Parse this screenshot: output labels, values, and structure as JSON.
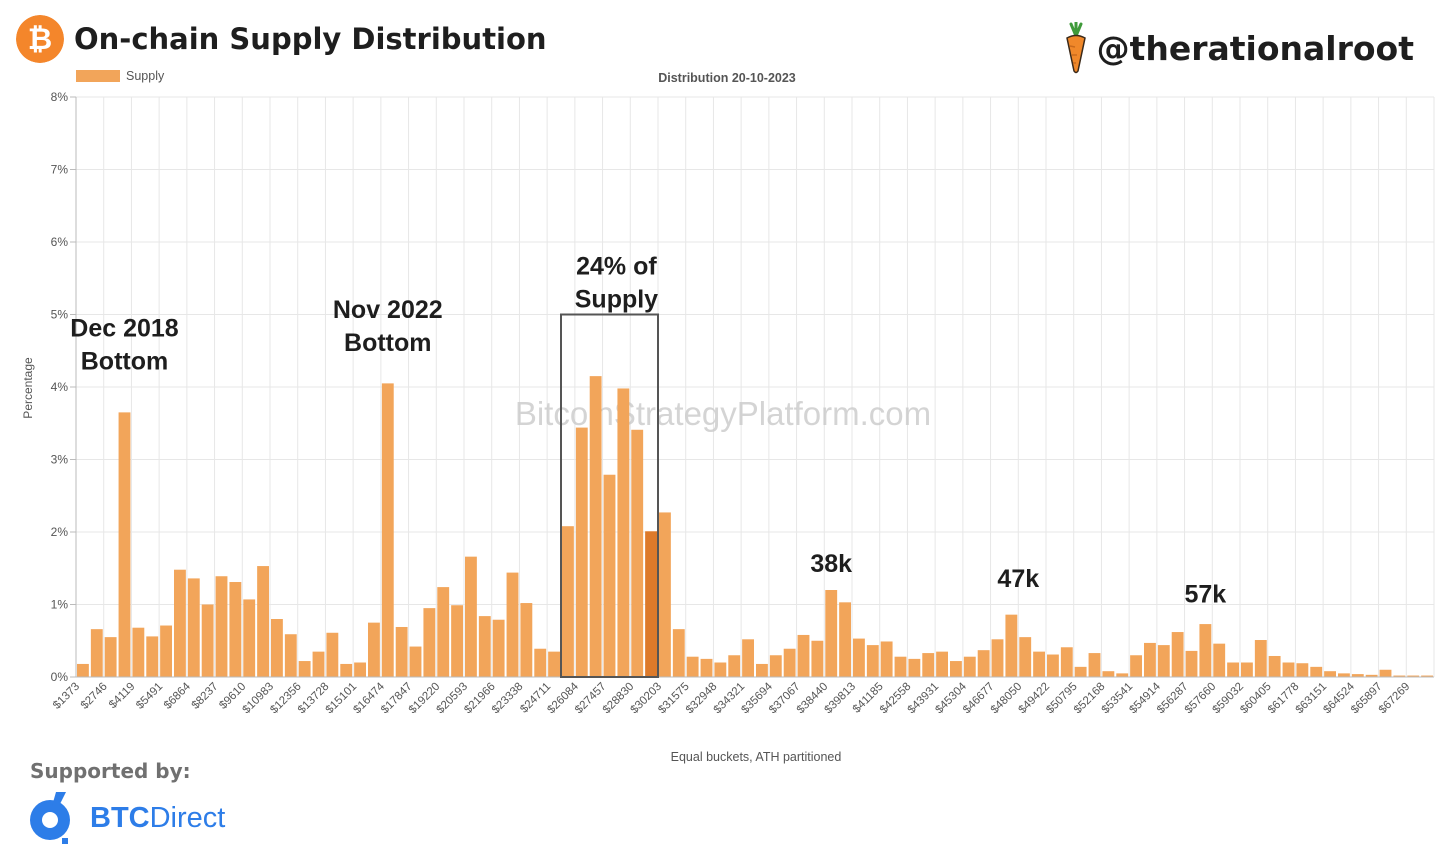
{
  "header": {
    "title": "On-chain Supply Distribution",
    "logo_glyph": "₿",
    "handle": "@therationalroot"
  },
  "chart_data": {
    "type": "bar",
    "title": "Distribution 20-10-2023",
    "xlabel": "Equal buckets, ATH partitioned",
    "ylabel": "Percentage",
    "ylim": [
      0,
      8
    ],
    "yticks": [
      "0%",
      "1%",
      "2%",
      "3%",
      "4%",
      "5%",
      "6%",
      "7%",
      "8%"
    ],
    "legend": {
      "label": "Supply",
      "position": "top-left"
    },
    "watermark": "BitcoinStrategyPlatform.com",
    "tick_labels": [
      "$1373",
      "$2746",
      "$4119",
      "$5491",
      "$6864",
      "$8237",
      "$9610",
      "$10983",
      "$12356",
      "$13728",
      "$15101",
      "$16474",
      "$17847",
      "$19220",
      "$20593",
      "$21966",
      "$23338",
      "$24711",
      "$26084",
      "$27457",
      "$28830",
      "$30203",
      "$31575",
      "$32948",
      "$34321",
      "$35694",
      "$37067",
      "$38440",
      "$39813",
      "$41185",
      "$42558",
      "$43931",
      "$45304",
      "$46677",
      "$48050",
      "$49422",
      "$50795",
      "$52168",
      "$53541",
      "$54914",
      "$56287",
      "$57660",
      "$59032",
      "$60405",
      "$61778",
      "$63151",
      "$64524",
      "$65897",
      "$67269"
    ],
    "bucket_count": 98,
    "values": [
      0.18,
      0.66,
      0.55,
      3.65,
      0.68,
      0.56,
      0.71,
      1.48,
      1.36,
      1.0,
      1.39,
      1.31,
      1.07,
      1.53,
      0.8,
      0.59,
      0.22,
      0.35,
      0.61,
      0.18,
      0.2,
      0.75,
      4.05,
      0.69,
      0.42,
      0.95,
      1.24,
      0.99,
      1.66,
      0.84,
      0.79,
      1.44,
      1.02,
      0.39,
      0.35,
      2.08,
      3.44,
      4.15,
      2.79,
      3.98,
      3.41,
      2.01,
      2.27,
      0.66,
      0.28,
      0.25,
      0.2,
      0.3,
      0.52,
      0.18,
      0.3,
      0.39,
      0.58,
      0.5,
      1.2,
      1.03,
      0.53,
      0.44,
      0.49,
      0.28,
      0.25,
      0.33,
      0.35,
      0.22,
      0.28,
      0.37,
      0.52,
      0.86,
      0.55,
      0.35,
      0.31,
      0.41,
      0.14,
      0.33,
      0.08,
      0.05,
      0.3,
      0.47,
      0.44,
      0.62,
      0.36,
      0.73,
      0.46,
      0.2,
      0.2,
      0.51,
      0.29,
      0.2,
      0.19,
      0.14,
      0.08,
      0.05,
      0.04,
      0.03,
      0.1,
      0.02,
      0.02,
      0.02
    ],
    "highlight_index": 41,
    "highlight_range": [
      35,
      42
    ],
    "annotations": [
      {
        "text": "Dec 2018",
        "line2": "Bottom",
        "at_index": 3,
        "at_value": 4.7
      },
      {
        "text": "Nov 2022",
        "line2": "Bottom",
        "at_index": 22,
        "at_value": 4.95
      },
      {
        "text": "24% of",
        "line2": "Supply",
        "at_index": 38.5,
        "at_value": 5.55
      },
      {
        "text": "38k",
        "line2": "",
        "at_index": 54,
        "at_value": 1.45
      },
      {
        "text": "47k",
        "line2": "",
        "at_index": 67.5,
        "at_value": 1.24
      },
      {
        "text": "57k",
        "line2": "",
        "at_index": 81,
        "at_value": 1.03
      }
    ],
    "colors": {
      "bar": "#f2a55a",
      "highlight": "#dd7a2a",
      "grid": "#e7e7e7",
      "box": "#555555",
      "watermark": "#c9c9c9"
    }
  },
  "footer": {
    "supported_by": "Supported by:",
    "sponsor_bold": "BTC",
    "sponsor_rest": "Direct"
  }
}
